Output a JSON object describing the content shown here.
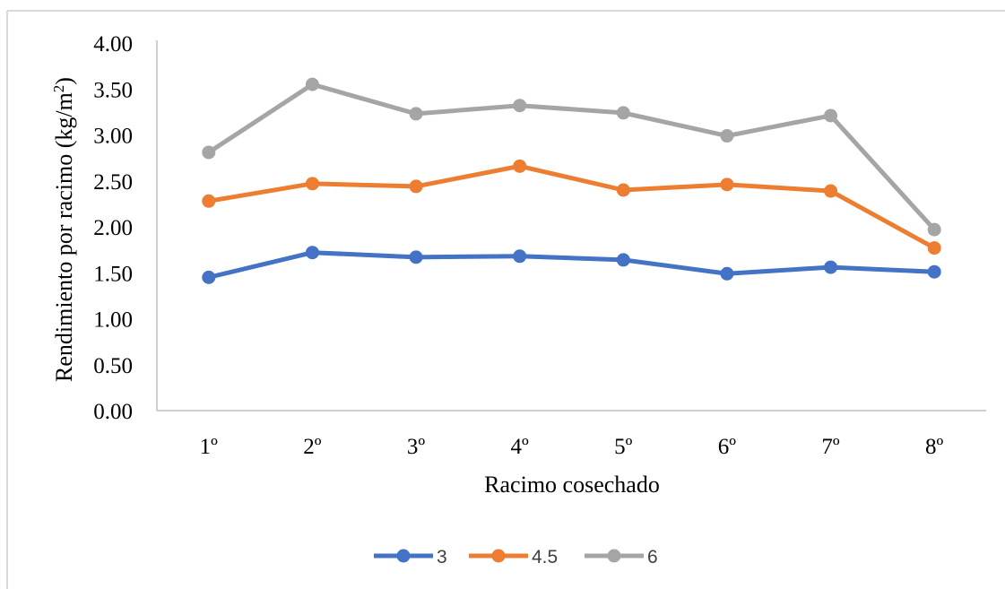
{
  "chart_data": {
    "type": "line",
    "categories": [
      "1º",
      "2º",
      "3º",
      "4º",
      "5º",
      "6º",
      "7º",
      "8º"
    ],
    "series": [
      {
        "name": "3",
        "color": "#4472C4",
        "values": [
          1.45,
          1.72,
          1.67,
          1.68,
          1.64,
          1.49,
          1.56,
          1.51
        ]
      },
      {
        "name": "4.5",
        "color": "#ED7D31",
        "values": [
          2.28,
          2.47,
          2.44,
          2.66,
          2.4,
          2.46,
          2.39,
          1.77
        ]
      },
      {
        "name": "6",
        "color": "#A5A5A5",
        "values": [
          2.81,
          3.55,
          3.23,
          3.32,
          3.24,
          2.99,
          3.21,
          1.97
        ]
      }
    ],
    "xlabel": "Racimo cosechado",
    "ylabel": "Rendimiento por racimo (kg/m2)",
    "ylabel_main": "Rendimiento por racimo (kg/m",
    "ylabel_sup": "2",
    "ylabel_close": ")",
    "ylim": [
      0,
      4
    ],
    "yticks": [
      "0.00",
      "0.50",
      "1.00",
      "1.50",
      "2.00",
      "2.50",
      "3.00",
      "3.50",
      "4.00"
    ],
    "grid": false,
    "legend_position": "bottom"
  }
}
